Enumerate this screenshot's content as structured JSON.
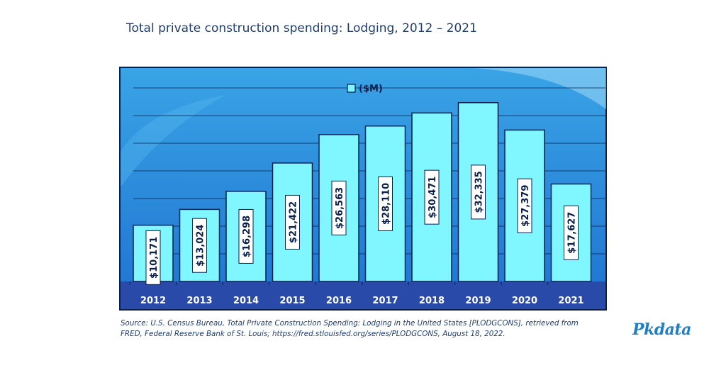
{
  "title": "Total private construction spending: Lodging, 2012 – 2021",
  "source": "Source: U.S. Census Bureau, Total Private Construction Spending: Lodging in the United States [PLODGCONS], retrieved from FRED, Federal Reserve Bank of St. Louis; https://fred.stlouisfed.org/series/PLODGCONS, August 18, 2022.",
  "logo": "Pkdata",
  "colors": {
    "bar_fill": "#80f6ff",
    "bar_stroke": "#0b1f4c",
    "background_top": "#3aa4e6",
    "background_bottom": "#1e73d0",
    "axis_band": "#2a4aaa"
  },
  "chart_data": {
    "type": "bar",
    "categories": [
      "2012",
      "2013",
      "2014",
      "2015",
      "2016",
      "2017",
      "2018",
      "2019",
      "2020",
      "2021"
    ],
    "series": [
      {
        "name": "($M)",
        "values": [
          10171,
          13024,
          16298,
          21422,
          26563,
          28110,
          30471,
          32335,
          27379,
          17627
        ],
        "labels": [
          "$10,171",
          "$13,024",
          "$16,298",
          "$21,422",
          "$26,563",
          "$28,110",
          "$30,471",
          "$32,335",
          "$27,379",
          "$17,627"
        ]
      }
    ],
    "ylim": [
      0,
      35000
    ],
    "grid": true,
    "legend": "top-center"
  }
}
